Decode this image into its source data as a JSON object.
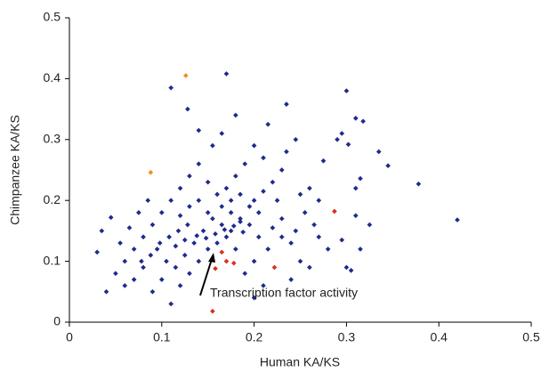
{
  "chart_data": {
    "type": "scatter",
    "x_label": "Human KA/KS",
    "y_label": "Chimpanzee KA/KS",
    "annotation": "Transcription factor activity",
    "xlim": [
      0,
      0.5
    ],
    "ylim": [
      0,
      0.5
    ],
    "xticks": [
      0,
      0.1,
      0.2,
      0.3,
      0.4,
      0.5
    ],
    "yticks": [
      0,
      0.1,
      0.2,
      0.3,
      0.4,
      0.5
    ],
    "grid": false,
    "series": [
      {
        "color": "#1f2a8c",
        "x": [
          0.42,
          0.378,
          0.345,
          0.335,
          0.31,
          0.318,
          0.3,
          0.295,
          0.29,
          0.302,
          0.17,
          0.11,
          0.128,
          0.235,
          0.18,
          0.215,
          0.315,
          0.31,
          0.04,
          0.03,
          0.035,
          0.045,
          0.11,
          0.305,
          0.3,
          0.325,
          0.31,
          0.315,
          0.295,
          0.275,
          0.26,
          0.25,
          0.255,
          0.265,
          0.27,
          0.28,
          0.245,
          0.24,
          0.23,
          0.225,
          0.22,
          0.23,
          0.21,
          0.2,
          0.19,
          0.18,
          0.17,
          0.16,
          0.15,
          0.14,
          0.13,
          0.12,
          0.11,
          0.1,
          0.09,
          0.08,
          0.07,
          0.06,
          0.05,
          0.055,
          0.065,
          0.075,
          0.085,
          0.095,
          0.105,
          0.115,
          0.125,
          0.135,
          0.145,
          0.155,
          0.165,
          0.175,
          0.185,
          0.195,
          0.205,
          0.215,
          0.2,
          0.19,
          0.18,
          0.17,
          0.16,
          0.15,
          0.14,
          0.13,
          0.12,
          0.1,
          0.09,
          0.08,
          0.07,
          0.06,
          0.165,
          0.175,
          0.185,
          0.195,
          0.205,
          0.158,
          0.168,
          0.178,
          0.188,
          0.148,
          0.138,
          0.128,
          0.118,
          0.108,
          0.098,
          0.088,
          0.078,
          0.25,
          0.26,
          0.24,
          0.21,
          0.2,
          0.235,
          0.245,
          0.155,
          0.165,
          0.14,
          0.2,
          0.21,
          0.22,
          0.23,
          0.175,
          0.185,
          0.15,
          0.14,
          0.13,
          0.12,
          0.115,
          0.125,
          0.27
        ],
        "values": [
          0.168,
          0.227,
          0.257,
          0.28,
          0.335,
          0.33,
          0.38,
          0.31,
          0.3,
          0.292,
          0.408,
          0.385,
          0.35,
          0.358,
          0.34,
          0.325,
          0.236,
          0.22,
          0.05,
          0.115,
          0.15,
          0.172,
          0.03,
          0.085,
          0.09,
          0.16,
          0.175,
          0.12,
          0.135,
          0.265,
          0.22,
          0.21,
          0.18,
          0.16,
          0.14,
          0.12,
          0.15,
          0.13,
          0.17,
          0.2,
          0.23,
          0.25,
          0.27,
          0.29,
          0.26,
          0.24,
          0.22,
          0.21,
          0.23,
          0.26,
          0.24,
          0.22,
          0.2,
          0.18,
          0.16,
          0.14,
          0.12,
          0.1,
          0.08,
          0.13,
          0.155,
          0.18,
          0.2,
          0.12,
          0.1,
          0.09,
          0.11,
          0.13,
          0.15,
          0.17,
          0.16,
          0.15,
          0.17,
          0.16,
          0.14,
          0.12,
          0.1,
          0.08,
          0.12,
          0.14,
          0.13,
          0.12,
          0.1,
          0.08,
          0.06,
          0.07,
          0.05,
          0.09,
          0.07,
          0.06,
          0.19,
          0.2,
          0.21,
          0.19,
          0.18,
          0.145,
          0.152,
          0.158,
          0.148,
          0.138,
          0.142,
          0.16,
          0.15,
          0.14,
          0.13,
          0.11,
          0.1,
          0.1,
          0.09,
          0.07,
          0.06,
          0.04,
          0.28,
          0.3,
          0.29,
          0.31,
          0.315,
          0.2,
          0.215,
          0.155,
          0.14,
          0.18,
          0.165,
          0.18,
          0.2,
          0.19,
          0.175,
          0.125,
          0.135,
          0.2
        ]
      },
      {
        "color": "#f0901e",
        "x": [
          0.126,
          0.088
        ],
        "values": [
          0.405,
          0.246
        ]
      },
      {
        "color": "#d9321e",
        "x": [
          0.155,
          0.165,
          0.17,
          0.178,
          0.222,
          0.287,
          0.158
        ],
        "values": [
          0.018,
          0.115,
          0.1,
          0.097,
          0.09,
          0.182,
          0.088
        ]
      }
    ]
  }
}
